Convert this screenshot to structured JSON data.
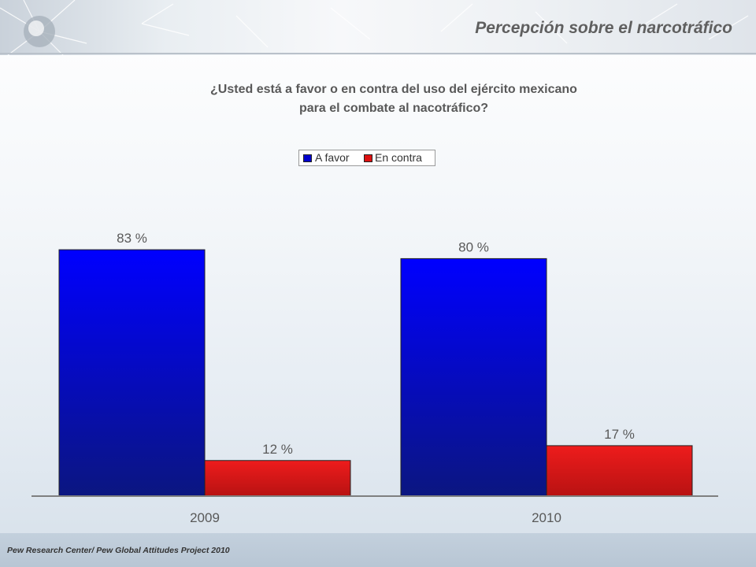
{
  "header": {
    "title": "Percepción sobre el narcotráfico"
  },
  "chart_data": {
    "type": "bar",
    "title_lines": [
      "¿Usted está a favor o en contra del uso del ejército mexicano",
      "para el combate al nacotráfico?"
    ],
    "categories": [
      "2009",
      "2010"
    ],
    "series": [
      {
        "name": "A favor",
        "values": [
          83,
          80
        ],
        "color": "#0000ff",
        "color_dark": "#0b1680",
        "labels": [
          "83 %",
          "80 %"
        ]
      },
      {
        "name": "En contra",
        "values": [
          12,
          17
        ],
        "color": "#ee1c1c",
        "color_dark": "#b81212",
        "labels": [
          "12 %",
          "17 %"
        ]
      }
    ],
    "ylim": [
      0,
      100
    ],
    "legend_position": "top-center",
    "grid": false
  },
  "footer": {
    "source": "Pew Research Center/ Pew Global Attitudes Project 2010"
  }
}
